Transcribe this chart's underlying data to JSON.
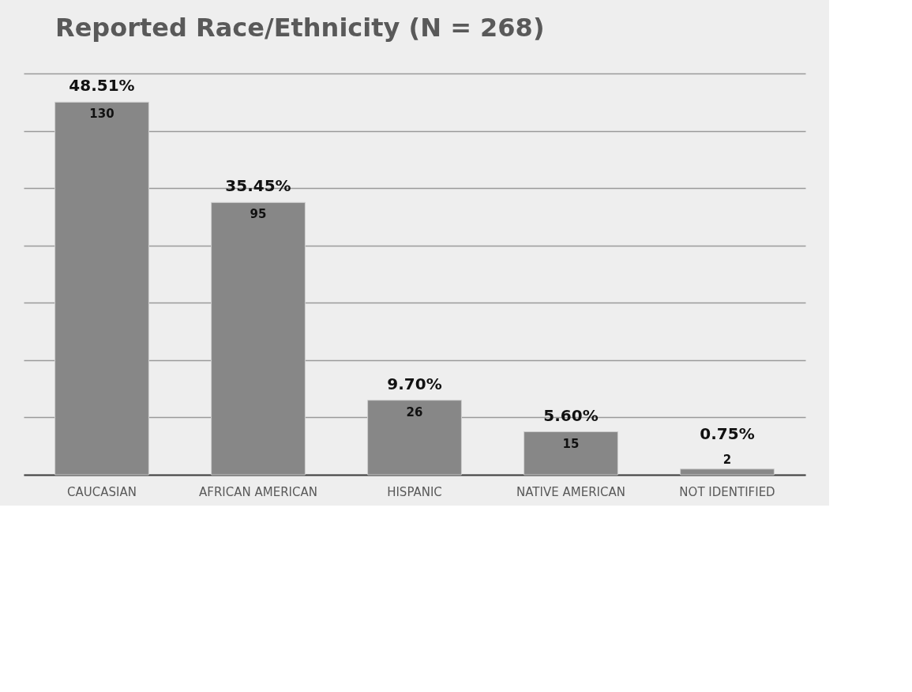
{
  "chart_data": {
    "type": "bar",
    "title": "Reported Race/Ethnicity (N = 268)",
    "categories": [
      "CAUCASIAN",
      "AFRICAN AMERICAN",
      "HISPANIC",
      "NATIVE AMERICAN",
      "NOT IDENTIFIED"
    ],
    "values": [
      130,
      95,
      26,
      15,
      2
    ],
    "color": "#878787",
    "data_labels": true,
    "ylim": [
      0,
      140
    ],
    "yticks": [
      {
        "value": 0,
        "label": null
      },
      {
        "value": 20,
        "label": null
      },
      {
        "value": 40,
        "label": null
      },
      {
        "value": 60,
        "label": null
      },
      {
        "value": 80,
        "label": null
      },
      {
        "value": 100,
        "label": null
      },
      {
        "value": 120,
        "label": null
      },
      {
        "value": 140,
        "label": null
      }
    ],
    "tick_labels": "x",
    "grid": "y",
    "annotations": [
      {
        "text": "48.51%",
        "x": "CAUCASIAN",
        "y": 130
      },
      {
        "text": "35.45%",
        "x": "AFRICAN AMERICAN",
        "y": 95
      },
      {
        "text": "9.70%",
        "x": "HISPANIC",
        "y": 26
      },
      {
        "text": "5.60%",
        "x": "NATIVE AMERICAN",
        "y": 15
      },
      {
        "text": "0.75%",
        "x": "NOT IDENTIFIED",
        "y": 2
      }
    ]
  }
}
